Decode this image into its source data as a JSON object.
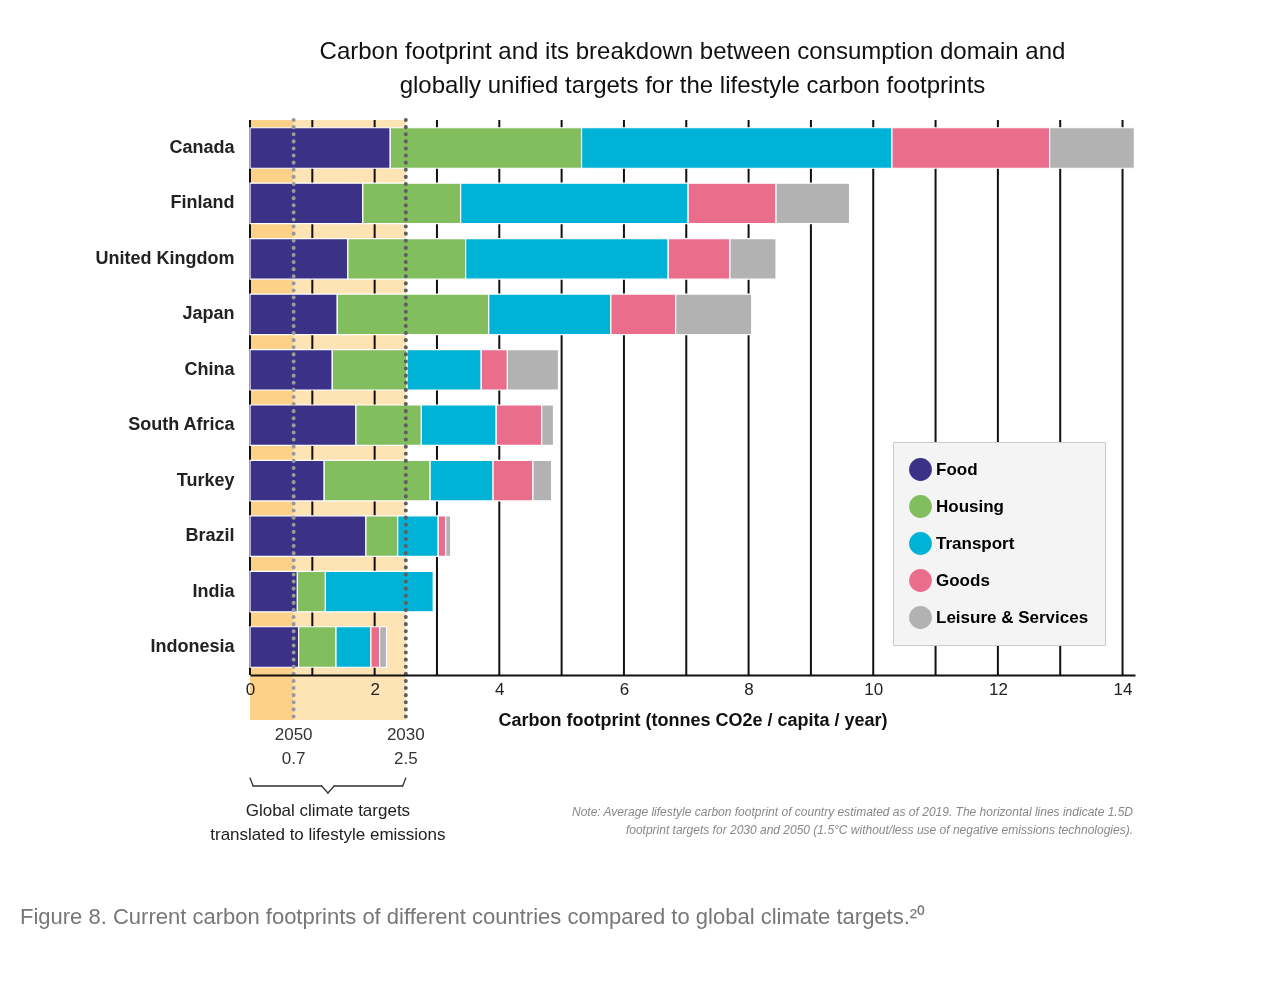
{
  "chart_data": {
    "type": "bar",
    "orientation": "horizontal",
    "stacked": true,
    "title": "Carbon footprint and its breakdown between consumption domain and\nglobally unified targets for the lifestyle carbon footprints",
    "xlabel": "Carbon footprint (tonnes CO2e / capita / year)",
    "categories": [
      "Canada",
      "Finland",
      "United Kingdom",
      "Japan",
      "China",
      "South Africa",
      "Turkey",
      "Brazil",
      "India",
      "Indonesia"
    ],
    "series": [
      {
        "name": "Food",
        "color": "#3b3187",
        "values": [
          2.25,
          1.81,
          1.57,
          1.4,
          1.32,
          1.7,
          1.19,
          1.86,
          0.76,
          0.78
        ]
      },
      {
        "name": "Housing",
        "color": "#82bd5e",
        "values": [
          3.07,
          1.57,
          1.89,
          2.43,
          1.2,
          1.05,
          1.7,
          0.51,
          0.45,
          0.6
        ]
      },
      {
        "name": "Transport",
        "color": "#00b3d6",
        "values": [
          4.98,
          3.65,
          3.25,
          1.96,
          1.19,
          1.2,
          1.01,
          0.65,
          1.73,
          0.56
        ]
      },
      {
        "name": "Goods",
        "color": "#eb6d8c",
        "values": [
          2.53,
          1.41,
          0.99,
          1.04,
          0.42,
          0.73,
          0.64,
          0.12,
          null,
          0.14
        ]
      },
      {
        "name": "Leisure & Services",
        "color": "#b2b2b2",
        "values": [
          1.36,
          1.18,
          0.74,
          1.22,
          0.82,
          0.19,
          0.3,
          0.08,
          null,
          0.11
        ]
      }
    ],
    "xlim": [
      0,
      14.2
    ],
    "xticks": [
      0,
      {
        "value": 1,
        "label": null
      },
      2,
      {
        "value": 3,
        "label": null
      },
      4,
      {
        "value": 5,
        "label": null
      },
      6,
      {
        "value": 7,
        "label": null
      },
      8,
      {
        "value": 9,
        "label": null
      },
      10,
      {
        "value": 11,
        "label": null
      },
      12,
      {
        "value": 13,
        "label": null
      },
      14
    ],
    "grid": "x",
    "legend": "bottom right",
    "bands": [
      {
        "axis": "x",
        "from": 0,
        "to": 0.7,
        "color": "#fdd187"
      },
      {
        "axis": "x",
        "from": 0.7,
        "to": 2.5,
        "color": "#fee3b5"
      }
    ],
    "ref_lines": [
      {
        "axis": "x",
        "value": 0.7,
        "label": "2050\n0.7",
        "color": "#9a9a9a",
        "line_style": "dotted"
      },
      {
        "axis": "x",
        "value": 2.5,
        "label": "2030\n2.5",
        "color": "#5f5f5f",
        "line_style": "dotted"
      }
    ],
    "annotations": [
      "Global climate targets\ntranslated to lifestyle emissions",
      "Note: Average lifestyle carbon footprint of country estimated as of 2019. The horizontal lines indicate 1.5D\nfootprint targets for 2030 and 2050 (1.5°C without/less use of negative emissions technologies).",
      "Figure 8. Current carbon footprints of different countries compared to global climate targets.²⁰"
    ]
  }
}
